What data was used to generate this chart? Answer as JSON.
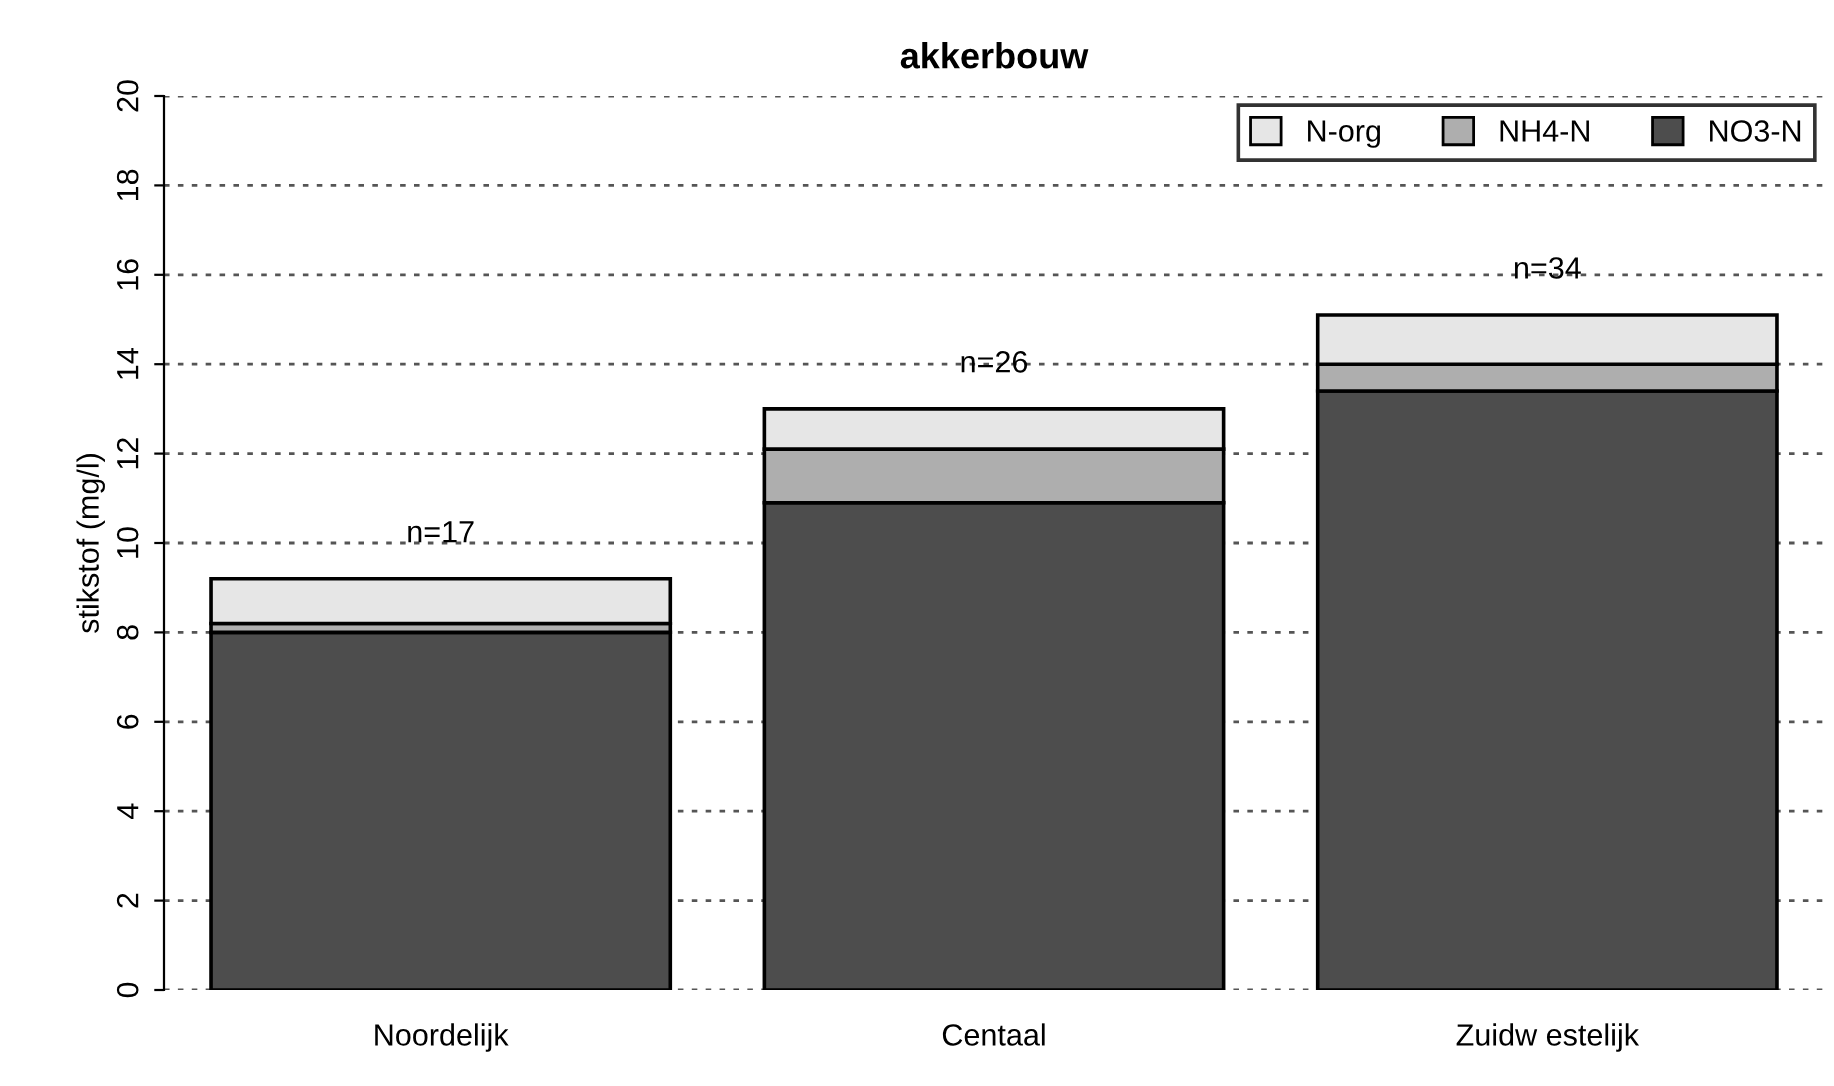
{
  "chart_data": {
    "type": "bar",
    "title": "akkerbouw",
    "ylabel": "stikstof (mg/l)",
    "categories": [
      "Noordelijk",
      "Centaal",
      "Zuidw estelijk"
    ],
    "stacked": true,
    "series": [
      {
        "name": "NO3-N",
        "color": "#4d4d4d",
        "values": [
          8.0,
          10.9,
          13.4
        ]
      },
      {
        "name": "NH4-N",
        "color": "#aeaeae",
        "values": [
          0.2,
          1.2,
          0.6
        ]
      },
      {
        "name": "N-org",
        "color": "#e6e6e6",
        "values": [
          1.0,
          0.9,
          1.1
        ]
      }
    ],
    "annotations": [
      "n=17",
      "n=26",
      "n=34"
    ],
    "ylim": [
      0,
      20
    ],
    "yticks": [
      0,
      2,
      4,
      6,
      8,
      10,
      12,
      14,
      16,
      18,
      20
    ],
    "grid": "y",
    "legend": "top right"
  }
}
